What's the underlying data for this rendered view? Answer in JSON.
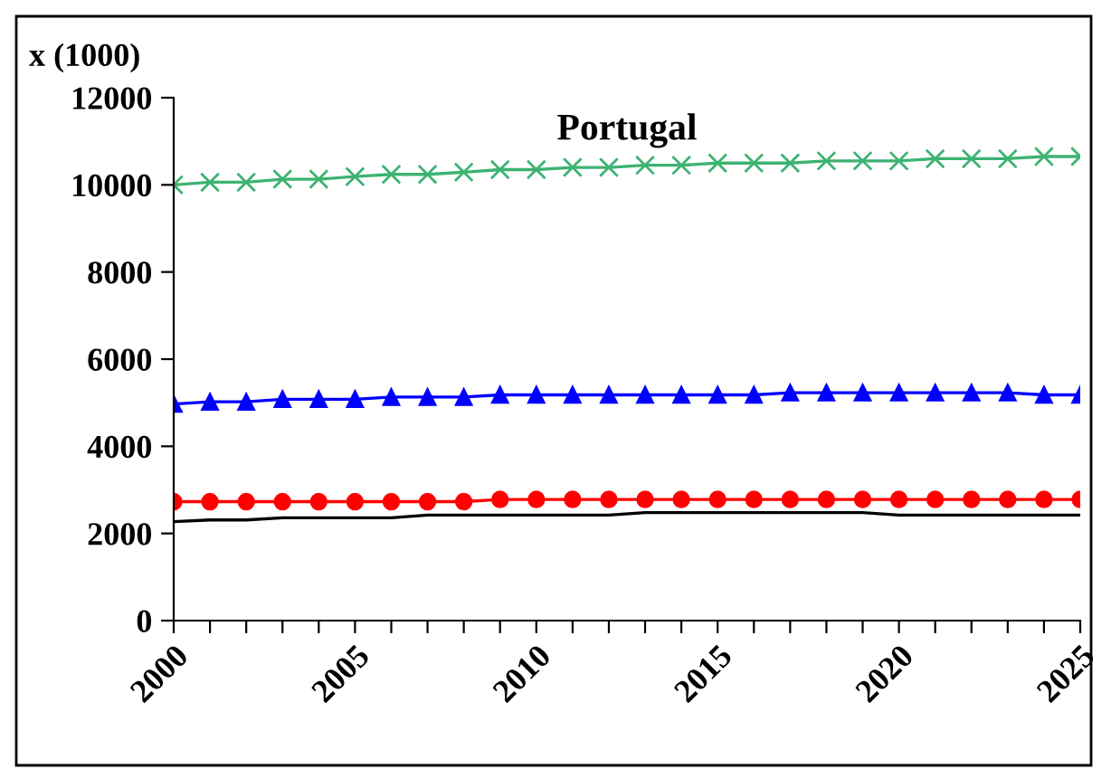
{
  "chart_data": {
    "type": "line",
    "title": "Portugal",
    "ylabel": "x (1000)",
    "x": [
      2000,
      2001,
      2002,
      2003,
      2004,
      2005,
      2006,
      2007,
      2008,
      2009,
      2010,
      2011,
      2012,
      2013,
      2014,
      2015,
      2016,
      2017,
      2018,
      2019,
      2020,
      2021,
      2022,
      2023,
      2024,
      2025
    ],
    "series": [
      {
        "color": "#3cb371",
        "marker": "cross",
        "values": [
          10000,
          10060,
          10060,
          10130,
          10130,
          10190,
          10240,
          10240,
          10290,
          10350,
          10350,
          10400,
          10400,
          10450,
          10450,
          10500,
          10500,
          10500,
          10550,
          10550,
          10550,
          10600,
          10600,
          10600,
          10650,
          10650
        ]
      },
      {
        "color": "#0000ff",
        "marker": "triangle",
        "values": [
          4970,
          5020,
          5020,
          5080,
          5080,
          5080,
          5130,
          5130,
          5130,
          5180,
          5180,
          5180,
          5180,
          5180,
          5180,
          5180,
          5180,
          5230,
          5230,
          5230,
          5230,
          5230,
          5230,
          5230,
          5180,
          5180
        ]
      },
      {
        "color": "#ff0000",
        "marker": "circle",
        "values": [
          2730,
          2730,
          2730,
          2730,
          2730,
          2730,
          2730,
          2730,
          2730,
          2780,
          2780,
          2780,
          2780,
          2780,
          2780,
          2780,
          2780,
          2780,
          2780,
          2780,
          2780,
          2780,
          2780,
          2780,
          2780,
          2780
        ]
      },
      {
        "color": "#000000",
        "marker": "none",
        "values": [
          2270,
          2310,
          2310,
          2360,
          2360,
          2360,
          2360,
          2420,
          2420,
          2420,
          2420,
          2420,
          2420,
          2480,
          2480,
          2480,
          2480,
          2480,
          2480,
          2480,
          2420,
          2420,
          2420,
          2420,
          2420,
          2420
        ]
      }
    ],
    "xlim": [
      2000,
      2025
    ],
    "xticks": [
      2000,
      {
        "value": 2001,
        "label": null
      },
      {
        "value": 2002,
        "label": null
      },
      {
        "value": 2003,
        "label": null
      },
      {
        "value": 2004,
        "label": null
      },
      2005,
      {
        "value": 2006,
        "label": null
      },
      {
        "value": 2007,
        "label": null
      },
      {
        "value": 2008,
        "label": null
      },
      {
        "value": 2009,
        "label": null
      },
      2010,
      {
        "value": 2011,
        "label": null
      },
      {
        "value": 2012,
        "label": null
      },
      {
        "value": 2013,
        "label": null
      },
      {
        "value": 2014,
        "label": null
      },
      2015,
      {
        "value": 2016,
        "label": null
      },
      {
        "value": 2017,
        "label": null
      },
      {
        "value": 2018,
        "label": null
      },
      {
        "value": 2019,
        "label": null
      },
      2020,
      {
        "value": 2021,
        "label": null
      },
      {
        "value": 2022,
        "label": null
      },
      {
        "value": 2023,
        "label": null
      },
      {
        "value": 2024,
        "label": null
      },
      2025
    ],
    "ylim": [
      0,
      12000
    ],
    "yticks": [
      0,
      2000,
      4000,
      6000,
      8000,
      10000,
      12000
    ],
    "grid": false,
    "legend": false
  }
}
